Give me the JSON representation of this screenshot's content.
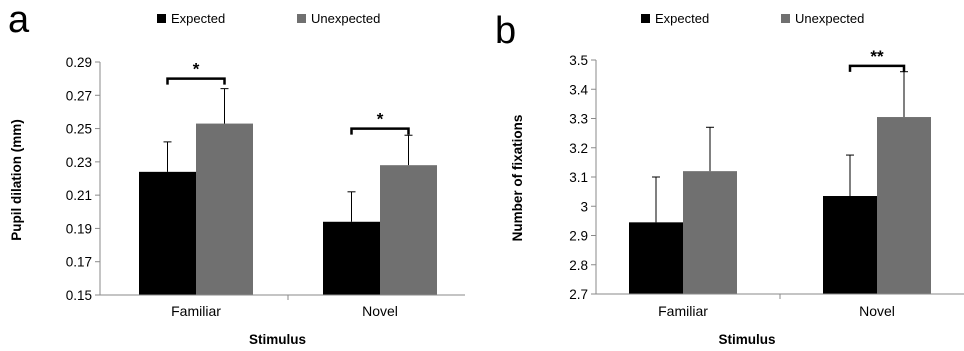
{
  "chart_data": [
    {
      "panel": "a",
      "type": "bar",
      "categories": [
        "Familiar",
        "Novel"
      ],
      "series": [
        {
          "name": "Expected",
          "color": "#000000",
          "values": [
            0.224,
            0.194
          ],
          "errors": [
            0.018,
            0.018
          ]
        },
        {
          "name": "Unexpected",
          "color": "#707070",
          "values": [
            0.253,
            0.228
          ],
          "errors": [
            0.021,
            0.018
          ]
        }
      ],
      "xlabel": "Stimulus",
      "ylabel": "Pupil dilation (mm)",
      "ylim": [
        0.15,
        0.29
      ],
      "yticks": [
        "0.15",
        "0.17",
        "0.19",
        "0.21",
        "0.23",
        "0.25",
        "0.27",
        "0.29"
      ],
      "legend": "top",
      "grid": false,
      "significance": [
        {
          "category": "Familiar",
          "label": "*",
          "bracket_y": 0.28
        },
        {
          "category": "Novel",
          "label": "*",
          "bracket_y": 0.25
        }
      ]
    },
    {
      "panel": "b",
      "type": "bar",
      "categories": [
        "Familiar",
        "Novel"
      ],
      "series": [
        {
          "name": "Expected",
          "color": "#000000",
          "values": [
            2.945,
            3.035
          ],
          "errors": [
            0.155,
            0.14
          ]
        },
        {
          "name": "Unexpected",
          "color": "#707070",
          "values": [
            3.12,
            3.305
          ],
          "errors": [
            0.15,
            0.155
          ]
        }
      ],
      "xlabel": "Stimulus",
      "ylabel": "Number of fixations",
      "ylim": [
        2.7,
        3.5
      ],
      "yticks": [
        "2.7",
        "2.8",
        "2.9",
        "3",
        "3.1",
        "3.2",
        "3.3",
        "3.4",
        "3.5"
      ],
      "legend": "top",
      "grid": false,
      "significance": [
        {
          "category": "Novel",
          "label": "**",
          "bracket_y": 3.48
        }
      ]
    }
  ]
}
